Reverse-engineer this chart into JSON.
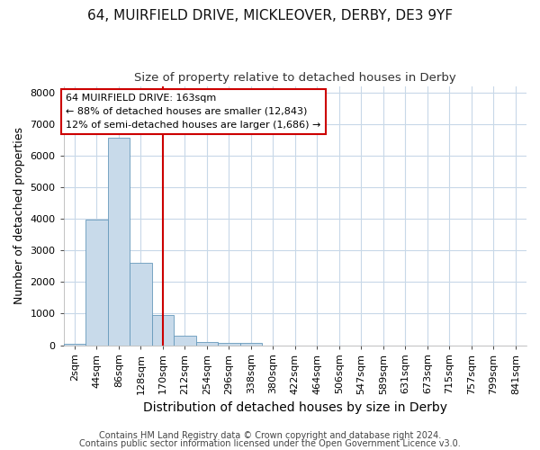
{
  "title1": "64, MUIRFIELD DRIVE, MICKLEOVER, DERBY, DE3 9YF",
  "title2": "Size of property relative to detached houses in Derby",
  "xlabel": "Distribution of detached houses by size in Derby",
  "ylabel": "Number of detached properties",
  "footer1": "Contains HM Land Registry data © Crown copyright and database right 2024.",
  "footer2": "Contains public sector information licensed under the Open Government Licence v3.0.",
  "bin_labels": [
    "2sqm",
    "44sqm",
    "86sqm",
    "128sqm",
    "170sqm",
    "212sqm",
    "254sqm",
    "296sqm",
    "338sqm",
    "380sqm",
    "422sqm",
    "464sqm",
    "506sqm",
    "547sqm",
    "589sqm",
    "631sqm",
    "673sqm",
    "715sqm",
    "757sqm",
    "799sqm",
    "841sqm"
  ],
  "bar_values": [
    50,
    3980,
    6550,
    2600,
    950,
    310,
    110,
    75,
    60,
    0,
    0,
    0,
    0,
    0,
    0,
    0,
    0,
    0,
    0,
    0,
    0
  ],
  "bar_color": "#c8daea",
  "bar_edge_color": "#6699bb",
  "reference_line_x": 4,
  "reference_line_color": "#cc0000",
  "annotation_line1": "64 MUIRFIELD DRIVE: 163sqm",
  "annotation_line2": "← 88% of detached houses are smaller (12,843)",
  "annotation_line3": "12% of semi-detached houses are larger (1,686) →",
  "annotation_box_facecolor": "#ffffff",
  "annotation_box_edgecolor": "#cc0000",
  "ylim": [
    0,
    8200
  ],
  "yticks": [
    0,
    1000,
    2000,
    3000,
    4000,
    5000,
    6000,
    7000,
    8000
  ],
  "background_color": "#ffffff",
  "plot_bg_color": "#ffffff",
  "grid_color": "#c8d8e8",
  "title1_fontsize": 11,
  "title2_fontsize": 9.5,
  "xlabel_fontsize": 10,
  "ylabel_fontsize": 9,
  "tick_fontsize": 8,
  "footer_fontsize": 7
}
